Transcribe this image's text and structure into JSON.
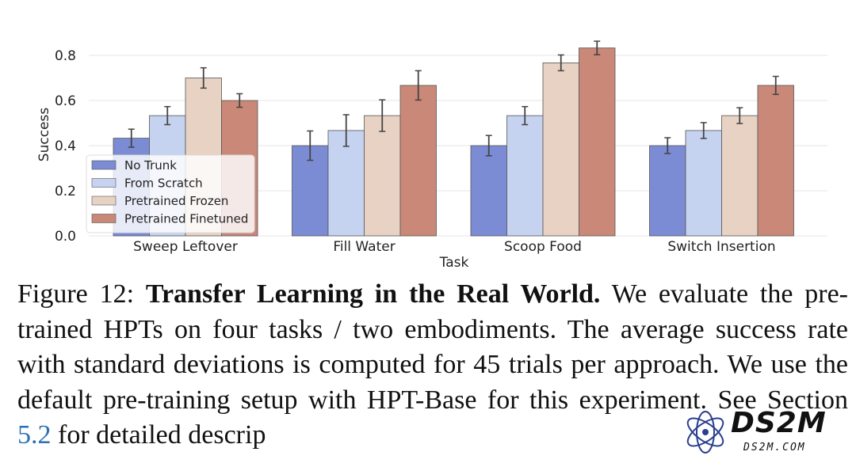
{
  "chart_data": {
    "type": "bar",
    "categories": [
      "Sweep Leftover",
      "Fill Water",
      "Scoop Food",
      "Switch Insertion"
    ],
    "series": [
      {
        "name": "No Trunk",
        "color": "#7b8bd4",
        "values": [
          0.433,
          0.4,
          0.4,
          0.4
        ],
        "errors": [
          0.04,
          0.065,
          0.045,
          0.035
        ]
      },
      {
        "name": "From Scratch",
        "color": "#c5d3f1",
        "values": [
          0.533,
          0.467,
          0.533,
          0.467
        ],
        "errors": [
          0.04,
          0.07,
          0.04,
          0.035
        ]
      },
      {
        "name": "Pretrained Frozen",
        "color": "#e7d2c3",
        "values": [
          0.7,
          0.533,
          0.767,
          0.533
        ],
        "errors": [
          0.045,
          0.07,
          0.035,
          0.035
        ]
      },
      {
        "name": "Pretrained Finetuned",
        "color": "#c98878",
        "values": [
          0.6,
          0.667,
          0.833,
          0.667
        ],
        "errors": [
          0.03,
          0.065,
          0.03,
          0.04
        ]
      }
    ],
    "title": "",
    "xlabel": "Task",
    "ylabel": "Success",
    "ylim": [
      0,
      0.8
    ],
    "yticks": [
      "0.0",
      "0.2",
      "0.4",
      "0.6",
      "0.8"
    ],
    "grid": "horizontal",
    "legend_position": "lower-left"
  },
  "caption": {
    "label": "Figure 12:",
    "title": "Transfer Learning in the Real World.",
    "text_before_ref": "We evaluate the pre-trained HPTs on four tasks / two embodiments. The average success rate with standard deviations is computed for 45 trials per approach. We use the default pre-training setup with HPT-Base for this experiment. See Section",
    "ref": "5.2",
    "text_after_ref": "for detailed descrip"
  },
  "watermark": {
    "brand": "DS2M",
    "sub": "DS2M.COM"
  }
}
